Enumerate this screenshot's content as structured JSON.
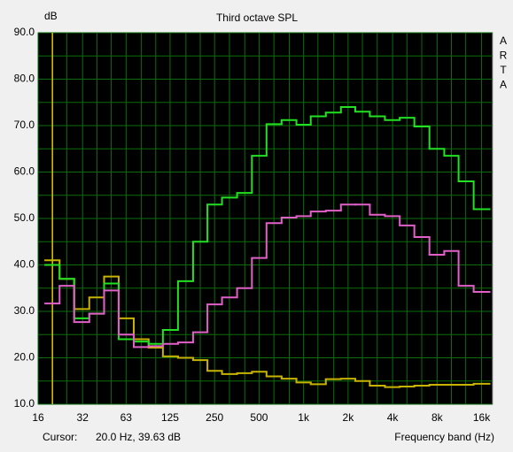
{
  "chart_data": {
    "type": "step",
    "title": "Third octave SPL",
    "y_unit": "dB",
    "x_label": "Frequency band (Hz)",
    "side_label": [
      "A",
      "R",
      "T",
      "A"
    ],
    "cursor_label": "Cursor:",
    "cursor_readout": "20.0 Hz, 39.63 dB",
    "cursor_x": 20,
    "cursor_color": "#d8c800",
    "log_x": true,
    "grid": true,
    "grid_color": "#0b6e0b",
    "background": "#000000",
    "xlim": [
      16,
      19000
    ],
    "ylim": [
      10,
      90
    ],
    "xticks": [
      16,
      32,
      63,
      125,
      250,
      500,
      {
        "value": 1000,
        "label": "1k"
      },
      {
        "value": 2000,
        "label": "2k"
      },
      {
        "value": 4000,
        "label": "4k"
      },
      {
        "value": 8000,
        "label": "8k"
      },
      {
        "value": 16000,
        "label": "16k"
      }
    ],
    "x_minor_ticks": [
      20,
      25,
      40,
      50,
      80,
      100,
      160,
      200,
      315,
      400,
      630,
      800,
      1250,
      1600,
      2500,
      3150,
      5000,
      6300,
      10000,
      12500
    ],
    "yticks": [
      {
        "value": 10,
        "label": "10.0"
      },
      {
        "value": 20,
        "label": "20.0"
      },
      {
        "value": 30,
        "label": "30.0"
      },
      {
        "value": 40,
        "label": "40.0"
      },
      {
        "value": 50,
        "label": "50.0"
      },
      {
        "value": 60,
        "label": "60.0"
      },
      {
        "value": 70,
        "label": "70.0"
      },
      {
        "value": 80,
        "label": "80.0"
      },
      {
        "value": 90,
        "label": "90.0"
      }
    ],
    "y_minor_ticks": [
      15,
      25,
      35,
      45,
      55,
      65,
      75,
      85
    ],
    "x": [
      20,
      25,
      31.5,
      40,
      50,
      63,
      80,
      100,
      125,
      160,
      200,
      250,
      315,
      400,
      500,
      630,
      800,
      1000,
      1250,
      1600,
      2000,
      2500,
      3150,
      4000,
      5000,
      6300,
      8000,
      10000,
      12500,
      16000
    ],
    "series": [
      {
        "color": "#c8b400",
        "values": [
          41,
          37,
          30.5,
          33,
          37.5,
          28.5,
          24,
          22.2,
          20.3,
          20,
          19.5,
          17.2,
          16.5,
          16.7,
          17,
          16,
          15.5,
          14.7,
          14.3,
          15.4,
          15.5,
          15,
          14,
          13.7,
          13.8,
          14,
          14.2,
          14.2,
          14.2,
          14.4
        ]
      },
      {
        "color": "#22e022",
        "values": [
          40,
          37,
          28.5,
          29.5,
          36,
          24,
          23.5,
          23,
          26,
          36.5,
          45,
          53,
          54.5,
          55.5,
          63.5,
          70.3,
          71.2,
          70.2,
          72,
          72.8,
          74,
          73,
          72,
          71.2,
          71.7,
          69.8,
          65,
          63.5,
          58,
          52
        ]
      },
      {
        "color": "#e060c8",
        "values": [
          31.7,
          35.5,
          27.7,
          29.5,
          34.5,
          25,
          22.3,
          22.5,
          23,
          23.3,
          25.5,
          31.5,
          33,
          35,
          41.5,
          49,
          50.2,
          50.5,
          51.5,
          51.7,
          53,
          53,
          50.8,
          50.5,
          48.5,
          46,
          42.2,
          43,
          35.5,
          34.2
        ]
      }
    ]
  }
}
